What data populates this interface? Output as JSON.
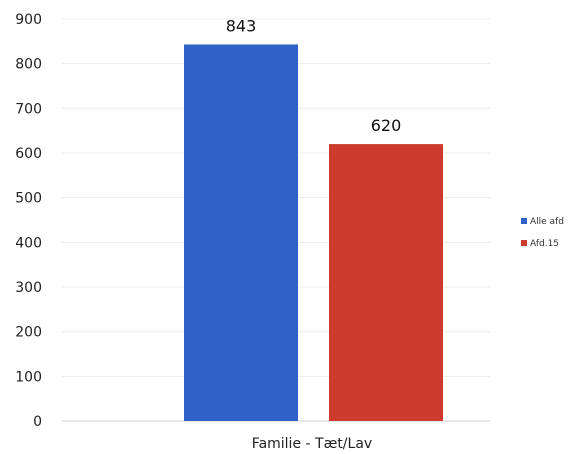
{
  "chart_data": {
    "type": "bar",
    "title": "",
    "xlabel": "",
    "ylabel": "",
    "categories": [
      "Familie - Tæt/Lav"
    ],
    "series": [
      {
        "name": "Alle afd",
        "values": [
          843
        ],
        "color": "#2f62c9"
      },
      {
        "name": "Afd.15",
        "values": [
          620
        ],
        "color": "#cc3b2e"
      }
    ],
    "ylim": [
      0,
      900
    ],
    "yticks": [
      0,
      100,
      200,
      300,
      400,
      500,
      600,
      700,
      800,
      900
    ],
    "grid": true,
    "data_labels": true,
    "legend_position": "right"
  }
}
